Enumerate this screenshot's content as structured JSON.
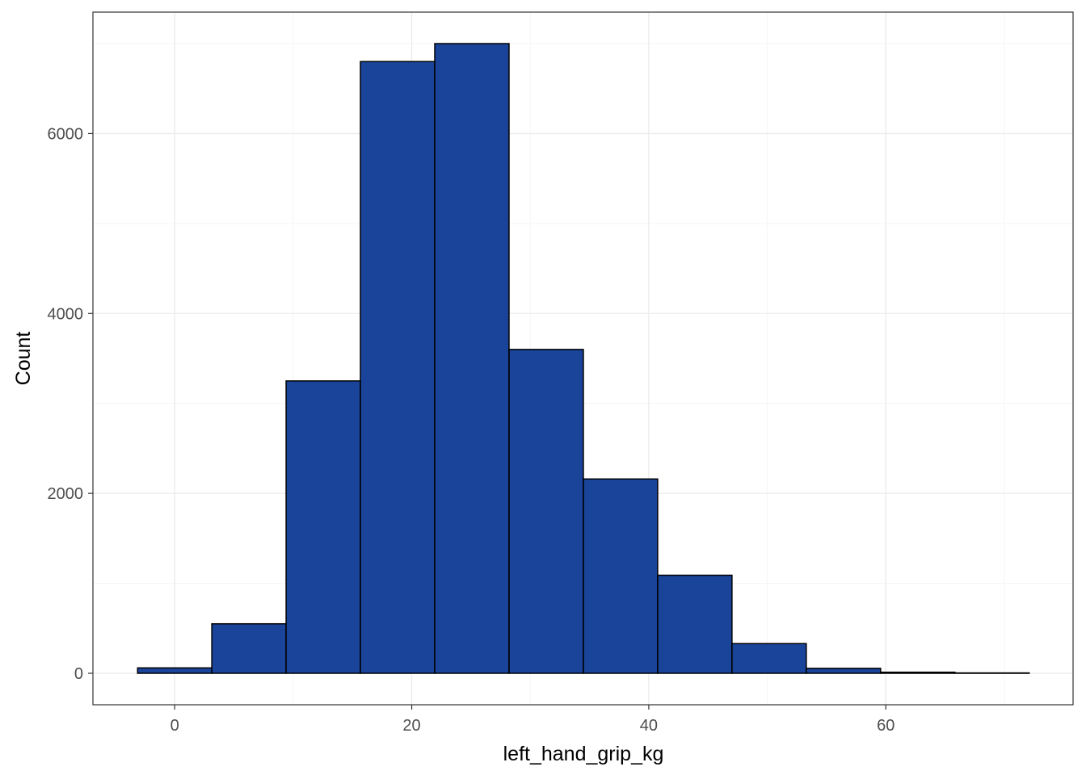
{
  "chart_data": {
    "type": "bar",
    "subtype": "histogram",
    "title": "",
    "xlabel": "left_hand_grip_kg",
    "ylabel": "Count",
    "bin_width": 6.27,
    "bins": [
      {
        "x_start": -3.13,
        "x_end": 3.13,
        "count": 60
      },
      {
        "x_start": 3.13,
        "x_end": 9.4,
        "count": 550
      },
      {
        "x_start": 9.4,
        "x_end": 15.67,
        "count": 3250
      },
      {
        "x_start": 15.67,
        "x_end": 21.94,
        "count": 6800
      },
      {
        "x_start": 21.94,
        "x_end": 28.21,
        "count": 7000
      },
      {
        "x_start": 28.21,
        "x_end": 34.48,
        "count": 3600
      },
      {
        "x_start": 34.48,
        "x_end": 40.75,
        "count": 2160
      },
      {
        "x_start": 40.75,
        "x_end": 47.02,
        "count": 1090
      },
      {
        "x_start": 47.02,
        "x_end": 53.29,
        "count": 330
      },
      {
        "x_start": 53.29,
        "x_end": 59.56,
        "count": 55
      },
      {
        "x_start": 59.56,
        "x_end": 65.83,
        "count": 12
      },
      {
        "x_start": 65.83,
        "x_end": 72.1,
        "count": 4
      }
    ],
    "xlim": [
      -6.9,
      75.8
    ],
    "ylim": [
      -350,
      7350
    ],
    "x_ticks": [
      0,
      20,
      40,
      60
    ],
    "y_ticks": [
      0,
      2000,
      4000,
      6000
    ],
    "grid": true,
    "legend": "none",
    "colors": {
      "bar_fill": "#19449a",
      "bar_stroke": "#000000",
      "panel_border": "#333333",
      "grid_major": "#ebebeb",
      "grid_minor": "#f5f5f5",
      "tick_text": "#4d4d4d"
    }
  }
}
